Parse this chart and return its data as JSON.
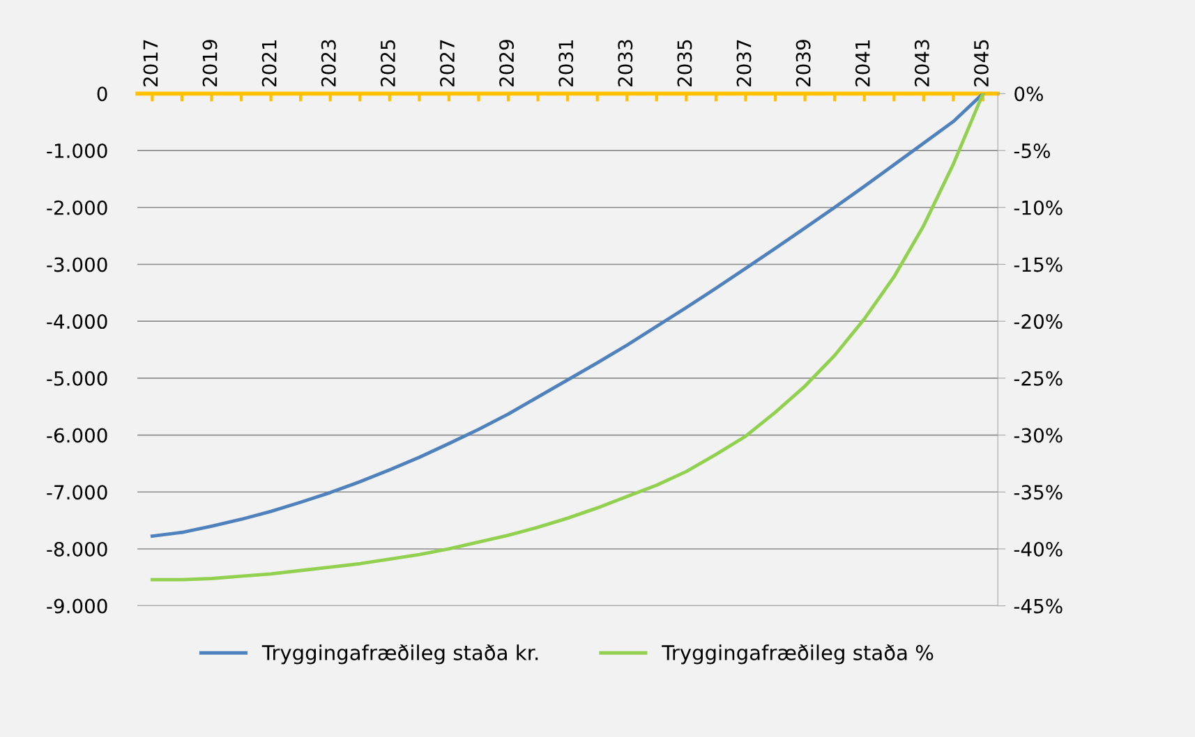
{
  "chart_data": {
    "type": "line",
    "x": [
      2017,
      2018,
      2019,
      2020,
      2021,
      2022,
      2023,
      2024,
      2025,
      2026,
      2027,
      2028,
      2029,
      2030,
      2031,
      2032,
      2033,
      2034,
      2035,
      2036,
      2037,
      2038,
      2039,
      2040,
      2041,
      2042,
      2043,
      2044,
      2045
    ],
    "series": [
      {
        "name": "Tryggingafræðileg staða kr.",
        "color": "#4f81bd",
        "values": [
          -7775,
          -7710,
          -7600,
          -7480,
          -7340,
          -7180,
          -7010,
          -6820,
          -6610,
          -6390,
          -6150,
          -5900,
          -5630,
          -5330,
          -5030,
          -4730,
          -4420,
          -4090,
          -3760,
          -3420,
          -3070,
          -2720,
          -2360,
          -2000,
          -1630,
          -1250,
          -870,
          -490,
          0
        ]
      },
      {
        "name": "Tryggingafræðileg staða %",
        "color": "#92d050",
        "axis": "y2",
        "values": [
          -42.7,
          -42.7,
          -42.6,
          -42.4,
          -42.2,
          -41.9,
          -41.6,
          -41.3,
          -40.9,
          -40.5,
          -40.0,
          -39.4,
          -38.8,
          -38.1,
          -37.3,
          -36.4,
          -35.4,
          -34.4,
          -33.2,
          -31.7,
          -30.1,
          -28.0,
          -25.7,
          -23.0,
          -19.8,
          -16.1,
          -11.6,
          -6.2,
          0
        ]
      }
    ],
    "xlim": [
      2016.5,
      2045.5
    ],
    "xticks": [
      {
        "value": 2017,
        "label": "2017"
      },
      {
        "value": 2018,
        "label": null
      },
      {
        "value": 2019,
        "label": "2019"
      },
      {
        "value": 2020,
        "label": null
      },
      {
        "value": 2021,
        "label": "2021"
      },
      {
        "value": 2022,
        "label": null
      },
      {
        "value": 2023,
        "label": "2023"
      },
      {
        "value": 2024,
        "label": null
      },
      {
        "value": 2025,
        "label": "2025"
      },
      {
        "value": 2026,
        "label": null
      },
      {
        "value": 2027,
        "label": "2027"
      },
      {
        "value": 2028,
        "label": null
      },
      {
        "value": 2029,
        "label": "2029"
      },
      {
        "value": 2030,
        "label": null
      },
      {
        "value": 2031,
        "label": "2031"
      },
      {
        "value": 2032,
        "label": null
      },
      {
        "value": 2033,
        "label": "2033"
      },
      {
        "value": 2034,
        "label": null
      },
      {
        "value": 2035,
        "label": "2035"
      },
      {
        "value": 2036,
        "label": null
      },
      {
        "value": 2037,
        "label": "2037"
      },
      {
        "value": 2038,
        "label": null
      },
      {
        "value": 2039,
        "label": "2039"
      },
      {
        "value": 2040,
        "label": null
      },
      {
        "value": 2041,
        "label": "2041"
      },
      {
        "value": 2042,
        "label": null
      },
      {
        "value": 2043,
        "label": "2043"
      },
      {
        "value": 2044,
        "label": null
      },
      {
        "value": 2045,
        "label": "2045"
      }
    ],
    "ylim": [
      -9000,
      0
    ],
    "yticks": [
      0,
      {
        "value": -1000,
        "label": "-1.000"
      },
      {
        "value": -2000,
        "label": "-2.000"
      },
      {
        "value": -3000,
        "label": "-3.000"
      },
      {
        "value": -4000,
        "label": "-4.000"
      },
      {
        "value": -5000,
        "label": "-5.000"
      },
      {
        "value": -6000,
        "label": "-6.000"
      },
      {
        "value": -7000,
        "label": "-7.000"
      },
      {
        "value": -8000,
        "label": "-8.000"
      },
      {
        "value": -9000,
        "label": "-9.000"
      }
    ],
    "y2lim": [
      -45,
      0
    ],
    "y2ticks": [
      {
        "value": 0,
        "label": "0%"
      },
      {
        "value": -5,
        "label": "-5%"
      },
      {
        "value": -10,
        "label": "-10%"
      },
      {
        "value": -15,
        "label": "-15%"
      },
      {
        "value": -20,
        "label": "-20%"
      },
      {
        "value": -25,
        "label": "-25%"
      },
      {
        "value": -30,
        "label": "-30%"
      },
      {
        "value": -35,
        "label": "-35%"
      },
      {
        "value": -40,
        "label": "-40%"
      },
      {
        "value": -45,
        "label": "-45%"
      }
    ],
    "grid": "y",
    "legend": "bottom",
    "marker": "none",
    "line_style": "solid"
  }
}
